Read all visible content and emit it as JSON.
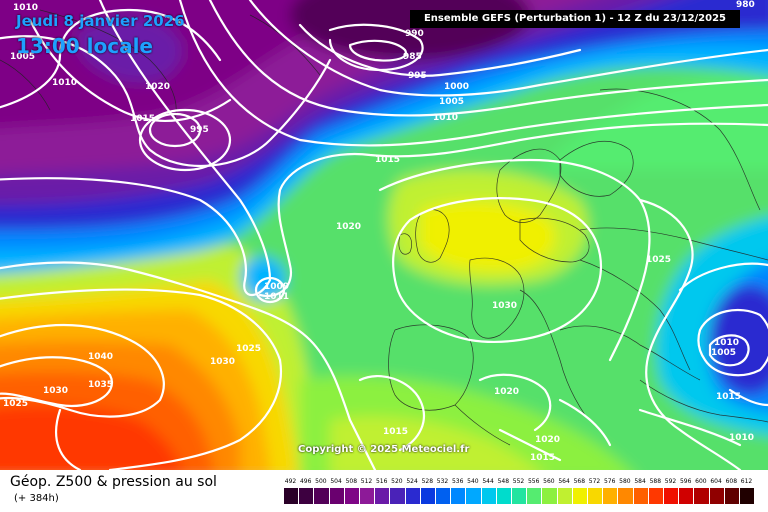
{
  "header": {
    "date": "Jeudi 8 janvier 2026",
    "time": "13:00 locale",
    "run_info": "Ensemble GEFS  (Perturbation 1)  -  12 Z du 23/12/2025"
  },
  "footer": {
    "title": "Géop. Z500 & pression au sol",
    "lead_time": "(+ 384h)"
  },
  "copyright": "Copyright © 2025 Meteociel.fr",
  "legend": {
    "values": [
      "492",
      "496",
      "500",
      "504",
      "508",
      "512",
      "516",
      "520",
      "524",
      "528",
      "532",
      "536",
      "540",
      "544",
      "548",
      "552",
      "556",
      "560",
      "564",
      "568",
      "572",
      "576",
      "580",
      "584",
      "588",
      "592",
      "596",
      "600",
      "604",
      "608",
      "612"
    ],
    "colors": [
      "#2a0028",
      "#3d0040",
      "#530058",
      "#6a006f",
      "#7e0586",
      "#8d1a98",
      "#6a1aa8",
      "#4a22b8",
      "#2a2ad0",
      "#0a3ae0",
      "#0060f0",
      "#0088ff",
      "#00a8ff",
      "#00c8ee",
      "#00dccc",
      "#22e4a0",
      "#55ec70",
      "#8cf040",
      "#c0f030",
      "#f0f000",
      "#f8d800",
      "#ffb000",
      "#ff8800",
      "#ff6000",
      "#ff3800",
      "#f01000",
      "#d00000",
      "#b00000",
      "#900000",
      "#600000",
      "#200000"
    ]
  },
  "isobar_labels": [
    {
      "text": "1010"
    },
    {
      "text": "1005"
    },
    {
      "text": "1010"
    },
    {
      "text": "1020"
    },
    {
      "text": "1015"
    },
    {
      "text": "995"
    },
    {
      "text": "990"
    },
    {
      "text": "985"
    },
    {
      "text": "995"
    },
    {
      "text": "1000"
    },
    {
      "text": "1005"
    },
    {
      "text": "1010"
    },
    {
      "text": "1015"
    },
    {
      "text": "980"
    },
    {
      "text": "1020"
    },
    {
      "text": "1009"
    },
    {
      "text": "1011"
    },
    {
      "text": "1025"
    },
    {
      "text": "1030"
    },
    {
      "text": "1040"
    },
    {
      "text": "1035"
    },
    {
      "text": "1030"
    },
    {
      "text": "1025"
    },
    {
      "text": "1030"
    },
    {
      "text": "1025"
    },
    {
      "text": "1010"
    },
    {
      "text": "1005"
    },
    {
      "text": "1015"
    },
    {
      "text": "1010"
    },
    {
      "text": "1020"
    },
    {
      "text": "1015"
    },
    {
      "text": "1020"
    },
    {
      "text": "1015"
    }
  ]
}
